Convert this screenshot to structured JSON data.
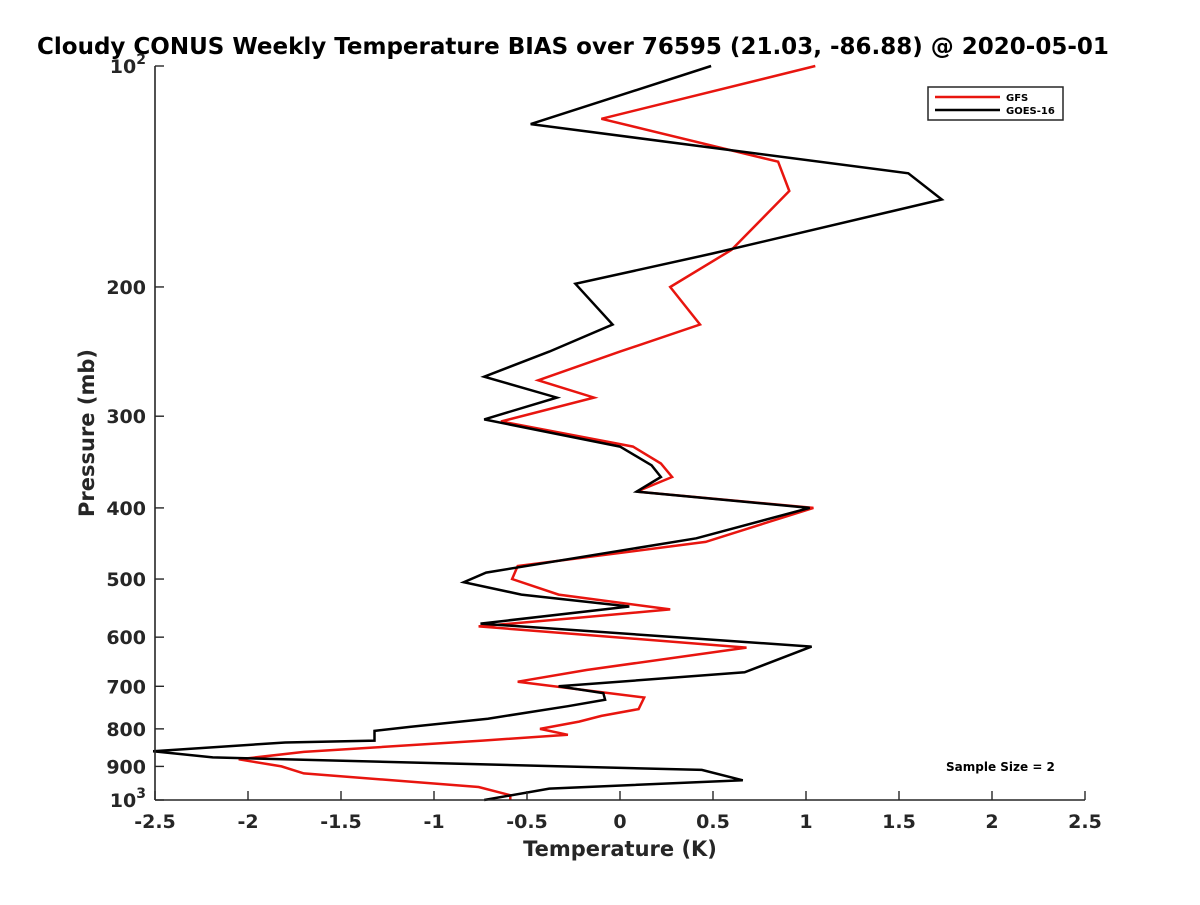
{
  "chart_data": {
    "type": "line",
    "title": "Cloudy CONUS Weekly Temperature BIAS over 76595 (21.03, -86.88) @ 2020-05-01",
    "xlabel": "Temperature (K)",
    "ylabel": "Pressure (mb)",
    "xlim": [
      -2.5,
      2.5
    ],
    "ylim": [
      100,
      1000
    ],
    "yscale": "log",
    "y_reversed": true,
    "x_ticks": [
      -2.5,
      -2,
      -1.5,
      -1,
      -0.5,
      0,
      0.5,
      1,
      1.5,
      2,
      2.5
    ],
    "x_tick_labels": [
      "-2.5",
      "-2",
      "-1.5",
      "-1",
      "-0.5",
      "0",
      "0.5",
      "1",
      "1.5",
      "2",
      "2.5"
    ],
    "y_ticks": [
      {
        "value": 100,
        "base": "10",
        "exp": "2"
      },
      {
        "value": 200,
        "label": "200"
      },
      {
        "value": 300,
        "label": "300"
      },
      {
        "value": 400,
        "label": "400"
      },
      {
        "value": 500,
        "label": "500"
      },
      {
        "value": 600,
        "label": "600"
      },
      {
        "value": 700,
        "label": "700"
      },
      {
        "value": 800,
        "label": "800"
      },
      {
        "value": 900,
        "label": "900"
      },
      {
        "value": 1000,
        "base": "10",
        "exp": "3"
      }
    ],
    "legend_position": "top-right",
    "annotation": "Sample Size = 2",
    "series": [
      {
        "name": "GFS",
        "color": "#e8150f",
        "points": [
          [
            1.05,
            100
          ],
          [
            -0.1,
            118
          ],
          [
            0.85,
            135
          ],
          [
            0.91,
            148
          ],
          [
            0.6,
            178
          ],
          [
            0.27,
            200
          ],
          [
            0.43,
            225
          ],
          [
            0.0,
            245
          ],
          [
            -0.44,
            268
          ],
          [
            -0.14,
            283
          ],
          [
            -0.64,
            305
          ],
          [
            0.07,
            330
          ],
          [
            0.22,
            348
          ],
          [
            0.28,
            363
          ],
          [
            0.09,
            380
          ],
          [
            1.04,
            400
          ],
          [
            0.46,
            445
          ],
          [
            -0.55,
            480
          ],
          [
            -0.58,
            500
          ],
          [
            -0.33,
            525
          ],
          [
            0.27,
            550
          ],
          [
            -0.24,
            565
          ],
          [
            -0.76,
            580
          ],
          [
            0.68,
            620
          ],
          [
            -0.18,
            665
          ],
          [
            -0.55,
            690
          ],
          [
            0.13,
            725
          ],
          [
            0.1,
            752
          ],
          [
            -0.1,
            768
          ],
          [
            -0.22,
            782
          ],
          [
            -0.43,
            800
          ],
          [
            -0.28,
            815
          ],
          [
            -0.74,
            830
          ],
          [
            -1.7,
            860
          ],
          [
            -2.05,
            880
          ],
          [
            -1.82,
            900
          ],
          [
            -1.7,
            920
          ],
          [
            -0.76,
            960
          ],
          [
            -0.59,
            985
          ],
          [
            -0.59,
            1000
          ]
        ]
      },
      {
        "name": "GOES-16",
        "color": "#000000",
        "points": [
          [
            0.49,
            100
          ],
          [
            -0.48,
            120
          ],
          [
            1.55,
            140
          ],
          [
            1.73,
            152
          ],
          [
            0.5,
            180
          ],
          [
            -0.24,
            198
          ],
          [
            -0.04,
            225
          ],
          [
            -0.38,
            245
          ],
          [
            -0.73,
            265
          ],
          [
            -0.34,
            283
          ],
          [
            -0.73,
            303
          ],
          [
            0.0,
            330
          ],
          [
            0.17,
            350
          ],
          [
            0.22,
            363
          ],
          [
            0.09,
            380
          ],
          [
            1.02,
            400
          ],
          [
            0.41,
            440
          ],
          [
            -0.72,
            490
          ],
          [
            -0.84,
            505
          ],
          [
            -0.53,
            525
          ],
          [
            0.05,
            545
          ],
          [
            -0.75,
            575
          ],
          [
            1.03,
            618
          ],
          [
            0.67,
            670
          ],
          [
            -0.33,
            700
          ],
          [
            -0.09,
            715
          ],
          [
            -0.08,
            730
          ],
          [
            -0.28,
            745
          ],
          [
            -0.71,
            775
          ],
          [
            -1.13,
            795
          ],
          [
            -1.32,
            805
          ],
          [
            -1.32,
            830
          ],
          [
            -1.8,
            835
          ],
          [
            -2.51,
            858
          ],
          [
            -2.19,
            875
          ],
          [
            0.44,
            910
          ],
          [
            0.66,
            940
          ],
          [
            -0.38,
            965
          ],
          [
            -0.73,
            1000
          ]
        ]
      }
    ]
  }
}
